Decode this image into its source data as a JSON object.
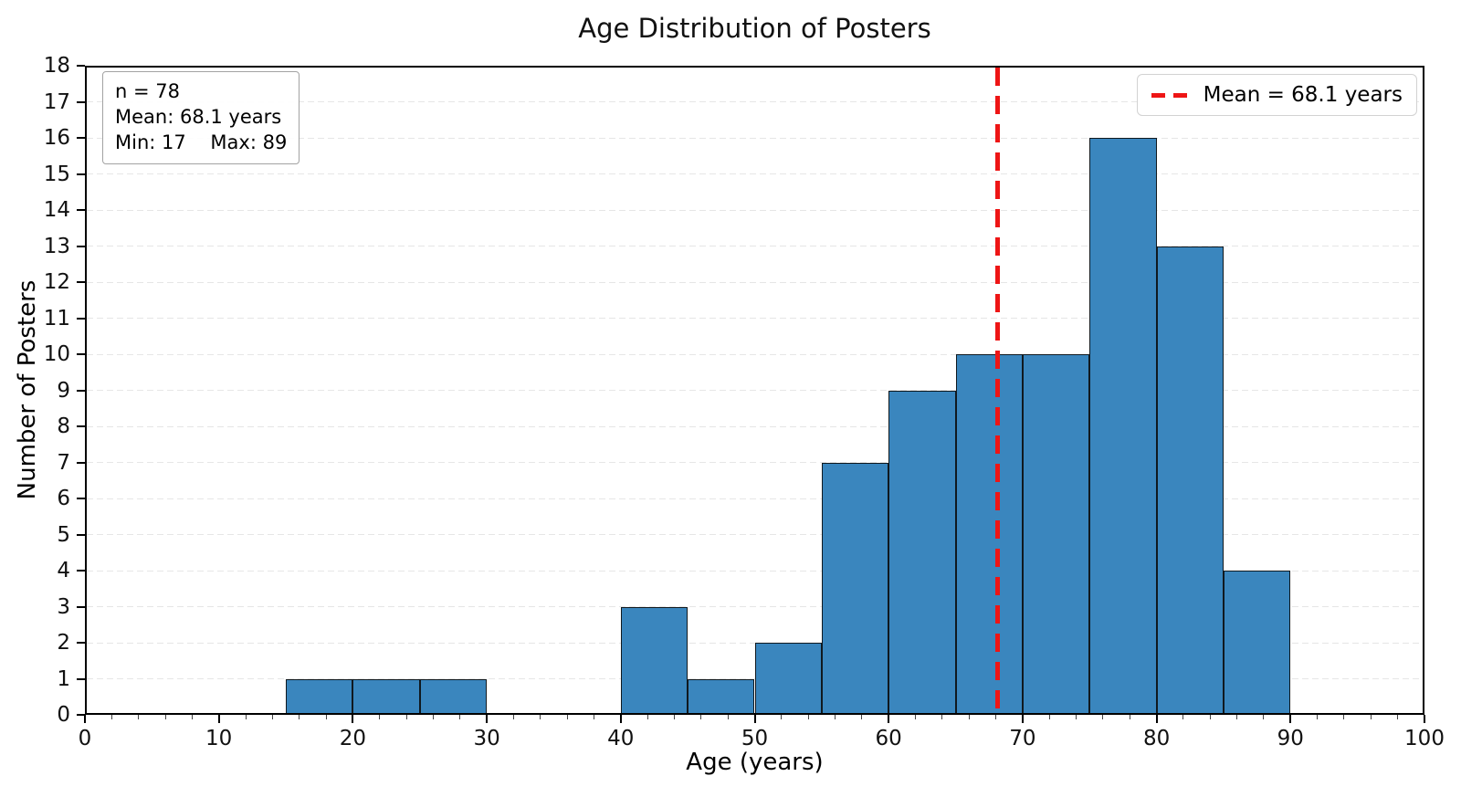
{
  "title": "Age Distribution of Posters",
  "stats_box": {
    "n": "n = 78",
    "mean": "Mean: 68.1 years",
    "min_max": "Min: 17    Max: 89"
  },
  "legend": {
    "mean_label": "Mean = 68.1 years",
    "position": "upper right"
  },
  "chart_data": {
    "type": "bar",
    "subtype": "histogram",
    "title": "Age Distribution of Posters",
    "xlabel": "Age (years)",
    "ylabel": "Number of Posters",
    "xlim": [
      0,
      100
    ],
    "ylim": [
      0,
      18
    ],
    "x_ticks": [
      0,
      10,
      20,
      30,
      40,
      50,
      60,
      70,
      80,
      90,
      100
    ],
    "x_minor_tick_step": 2,
    "y_ticks": [
      0,
      1,
      2,
      3,
      4,
      5,
      6,
      7,
      8,
      9,
      10,
      11,
      12,
      13,
      14,
      15,
      16,
      17,
      18
    ],
    "grid": "horizontal dashed",
    "bin_width": 5,
    "bins": [
      {
        "range": "15-20",
        "start": 15,
        "count": 1
      },
      {
        "range": "20-25",
        "start": 20,
        "count": 1
      },
      {
        "range": "25-30",
        "start": 25,
        "count": 1
      },
      {
        "range": "40-45",
        "start": 40,
        "count": 3
      },
      {
        "range": "45-50",
        "start": 45,
        "count": 1
      },
      {
        "range": "50-55",
        "start": 50,
        "count": 2
      },
      {
        "range": "55-60",
        "start": 55,
        "count": 7
      },
      {
        "range": "60-65",
        "start": 60,
        "count": 9
      },
      {
        "range": "65-70",
        "start": 65,
        "count": 10
      },
      {
        "range": "70-75",
        "start": 70,
        "count": 10
      },
      {
        "range": "75-80",
        "start": 75,
        "count": 16
      },
      {
        "range": "80-85",
        "start": 80,
        "count": 13
      },
      {
        "range": "85-90",
        "start": 85,
        "count": 4
      }
    ],
    "n": 78,
    "mean": 68.1,
    "min": 17,
    "max": 89,
    "colors": {
      "bar_fill": "#3a86be",
      "bar_edge": "#10191f",
      "mean_line": "#ee1515",
      "grid": "#e6e6e6",
      "axis": "#000000"
    }
  }
}
